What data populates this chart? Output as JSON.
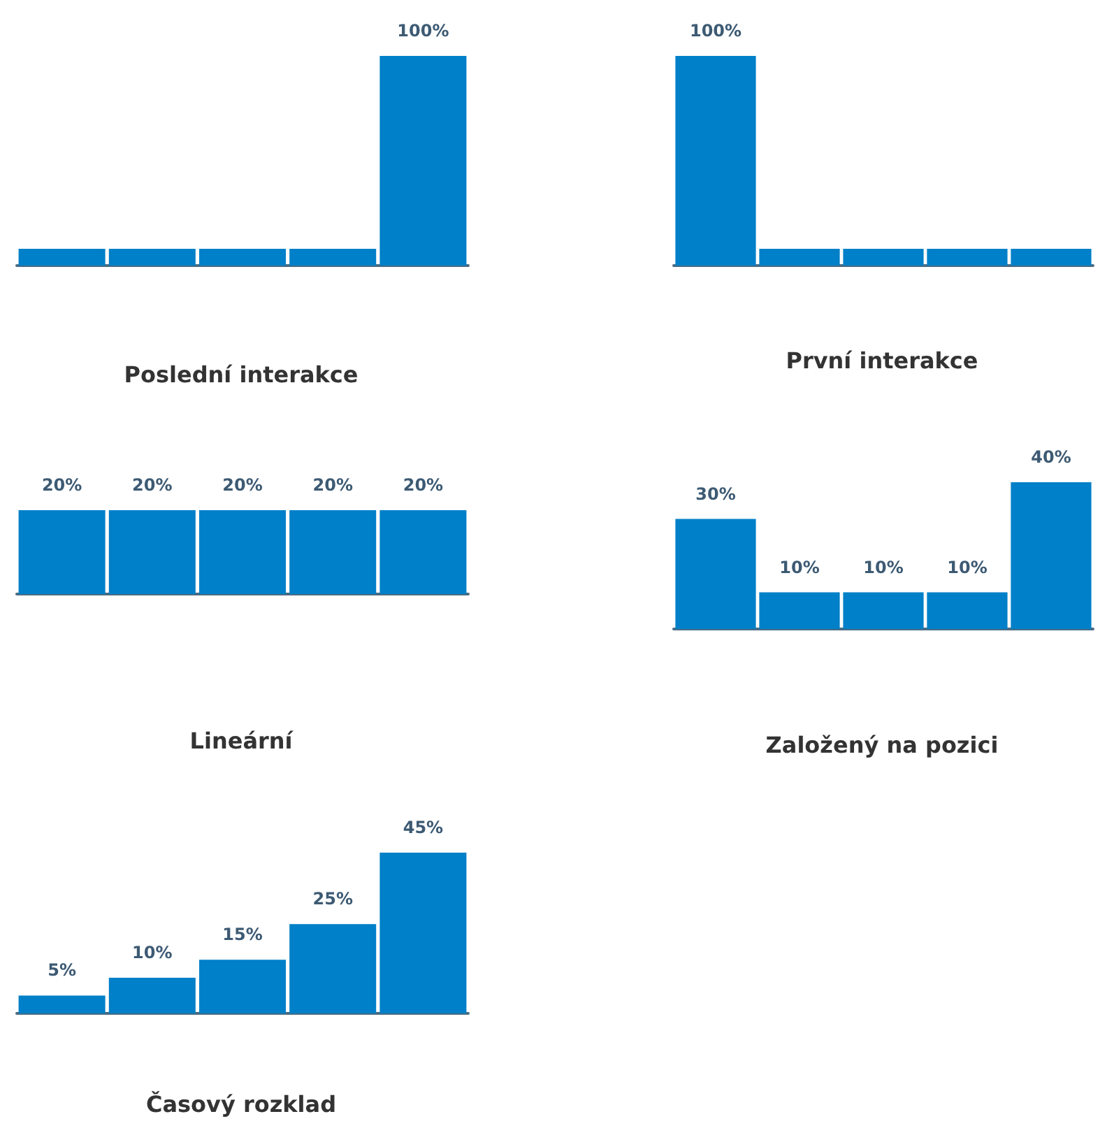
{
  "chart_data": [
    {
      "type": "bar",
      "title": "Poslední interakce",
      "categories": [
        null,
        null,
        null,
        null,
        null
      ],
      "values": [
        8,
        8,
        8,
        8,
        100
      ],
      "value_labels": [
        null,
        null,
        null,
        null,
        "100%"
      ],
      "color": "#0080c8"
    },
    {
      "type": "bar",
      "title": "První interakce",
      "categories": [
        null,
        null,
        null,
        null,
        null
      ],
      "values": [
        100,
        8,
        8,
        8,
        8
      ],
      "value_labels": [
        "100%",
        null,
        null,
        null,
        null
      ],
      "color": "#0080c8"
    },
    {
      "type": "bar",
      "title": "Lineární",
      "categories": [
        null,
        null,
        null,
        null,
        null
      ],
      "values": [
        20,
        20,
        20,
        20,
        20
      ],
      "value_labels": [
        "20%",
        "20%",
        "20%",
        "20%",
        "20%"
      ],
      "color": "#0080c8"
    },
    {
      "type": "bar",
      "title": "Založený na pozici",
      "categories": [
        null,
        null,
        null,
        null,
        null
      ],
      "values": [
        30,
        10,
        10,
        10,
        40
      ],
      "value_labels": [
        "30%",
        "10%",
        "10%",
        "10%",
        "40%"
      ],
      "color": "#0080c8"
    },
    {
      "type": "bar",
      "title": "Časový rozklad",
      "categories": [
        null,
        null,
        null,
        null,
        null
      ],
      "values": [
        5,
        10,
        15,
        25,
        45
      ],
      "value_labels": [
        "5%",
        "10%",
        "15%",
        "25%",
        "45%"
      ],
      "color": "#0080c8"
    }
  ]
}
